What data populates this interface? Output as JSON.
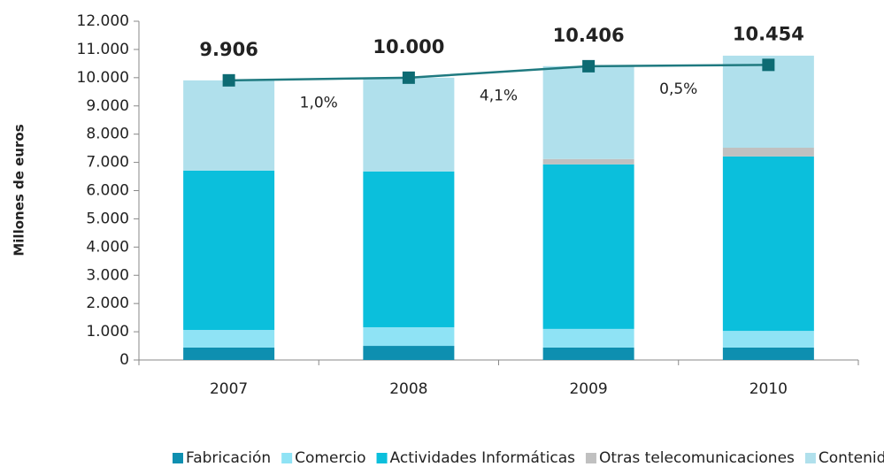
{
  "chart_data": {
    "type": "stacked_bar_line",
    "ylabel": "Millones de euros",
    "categories": [
      "2007",
      "2008",
      "2009",
      "2010"
    ],
    "series": [
      {
        "name": "Fabricación",
        "color": "#0e8fb0",
        "values": [
          440,
          500,
          440,
          440
        ]
      },
      {
        "name": "Comercio",
        "color": "#8fe3f5",
        "values": [
          625,
          660,
          660,
          590
        ]
      },
      {
        "name": "Actividades Informáticas",
        "color": "#0bbfdc",
        "values": [
          5645,
          5520,
          5830,
          6180
        ]
      },
      {
        "name": "Otras telecomunicaciones",
        "color": "#c0c0c0",
        "values": [
          0,
          0,
          190,
          310
        ]
      },
      {
        "name": "Contenidos",
        "color": "#b0e0ec",
        "values": [
          3195,
          3320,
          3290,
          3260
        ]
      }
    ],
    "line": {
      "color": "#1f7a80",
      "marker_color": "#0d6b73",
      "values": [
        9906,
        10000,
        10406,
        10454
      ],
      "value_labels": [
        "9.906",
        "10.000",
        "10.406",
        "10.454"
      ]
    },
    "annotations": [
      "1,0%",
      "4,1%",
      "0,5%"
    ],
    "ylim": [
      0,
      12000
    ],
    "yticks": [
      0,
      {
        "value": 1000,
        "label": "1.000"
      },
      {
        "value": 2000,
        "label": "2.000"
      },
      {
        "value": 3000,
        "label": "3.000"
      },
      {
        "value": 4000,
        "label": "4.000"
      },
      {
        "value": 5000,
        "label": "5.000"
      },
      {
        "value": 6000,
        "label": "6.000"
      },
      {
        "value": 7000,
        "label": "7.000"
      },
      {
        "value": 8000,
        "label": "8.000"
      },
      {
        "value": 9000,
        "label": "9.000"
      },
      {
        "value": 10000,
        "label": "10.000"
      },
      {
        "value": 11000,
        "label": "11.000"
      },
      {
        "value": 12000,
        "label": "12.000"
      }
    ],
    "legend": "bottom"
  }
}
